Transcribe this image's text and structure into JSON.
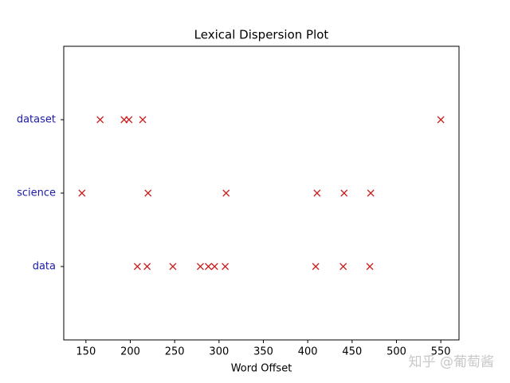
{
  "chart_data": {
    "type": "dispersion",
    "title": "Lexical Dispersion Plot",
    "xlabel": "Word Offset",
    "categories": [
      "data",
      "science",
      "dataset"
    ],
    "category_color": "#1a1aa6",
    "marker_color": "#cc1f1f",
    "series": [
      {
        "name": "data",
        "x": [
          208,
          219,
          248,
          279,
          288,
          295,
          307,
          409,
          440,
          470
        ]
      },
      {
        "name": "science",
        "x": [
          145.5,
          220,
          308,
          410.5,
          441,
          471
        ]
      },
      {
        "name": "dataset",
        "x": [
          166,
          193,
          198.5,
          214,
          550
        ]
      }
    ],
    "xlim": [
      125,
      570.5
    ],
    "xticks": [
      150,
      200,
      250,
      300,
      350,
      400,
      450,
      500,
      550
    ],
    "ylim": [
      -1,
      3
    ],
    "watermark": "知乎 @葡萄酱"
  }
}
